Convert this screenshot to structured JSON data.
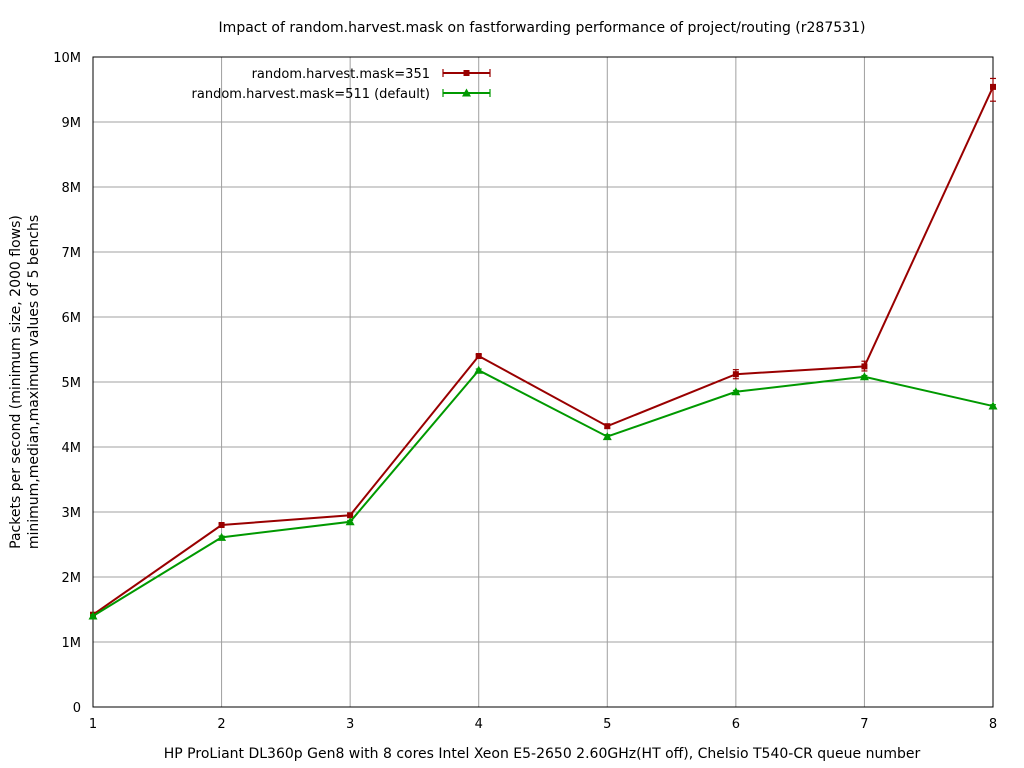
{
  "chart_data": {
    "type": "line",
    "title": "Impact of random.harvest.mask on fastforwarding performance of project/routing (r287531)",
    "xlabel": "HP ProLiant DL360p Gen8 with 8 cores Intel Xeon E5-2650 2.60GHz(HT off), Chelsio T540-CR queue number",
    "ylabel_line1": "Packets per second (minimum size, 2000 flows)",
    "ylabel_line2": "minimum,median,maximum values of 5 benchs",
    "x": [
      1,
      2,
      3,
      4,
      5,
      6,
      7,
      8
    ],
    "xlim": [
      1,
      8
    ],
    "ylim": [
      0,
      10000000
    ],
    "x_ticks": [
      "1",
      "2",
      "3",
      "4",
      "5",
      "6",
      "7",
      "8"
    ],
    "y_ticks": [
      {
        "value": 0,
        "label": "0"
      },
      {
        "value": 1000000,
        "label": "1M"
      },
      {
        "value": 2000000,
        "label": "2M"
      },
      {
        "value": 3000000,
        "label": "3M"
      },
      {
        "value": 4000000,
        "label": "4M"
      },
      {
        "value": 5000000,
        "label": "5M"
      },
      {
        "value": 6000000,
        "label": "6M"
      },
      {
        "value": 7000000,
        "label": "7M"
      },
      {
        "value": 8000000,
        "label": "8M"
      },
      {
        "value": 9000000,
        "label": "9M"
      },
      {
        "value": 10000000,
        "label": "10M"
      }
    ],
    "grid": true,
    "legend_position": "top-left",
    "series": [
      {
        "name": "random.harvest.mask=351",
        "color": "#990000",
        "marker": "square",
        "values": [
          1420000,
          2800000,
          2950000,
          5400000,
          4320000,
          5120000,
          5240000,
          9540000
        ],
        "min": [
          1400000,
          2780000,
          2920000,
          5380000,
          4290000,
          5050000,
          5170000,
          9320000
        ],
        "max": [
          1440000,
          2820000,
          2980000,
          5420000,
          4350000,
          5190000,
          5320000,
          9670000
        ]
      },
      {
        "name": "random.harvest.mask=511 (default)",
        "color": "#009900",
        "marker": "triangle",
        "values": [
          1400000,
          2610000,
          2850000,
          5180000,
          4160000,
          4850000,
          5080000,
          4630000
        ],
        "min": [
          1380000,
          2590000,
          2830000,
          5160000,
          4130000,
          4830000,
          5060000,
          4610000
        ],
        "max": [
          1420000,
          2630000,
          2870000,
          5200000,
          4190000,
          4870000,
          5100000,
          4650000
        ]
      }
    ]
  }
}
